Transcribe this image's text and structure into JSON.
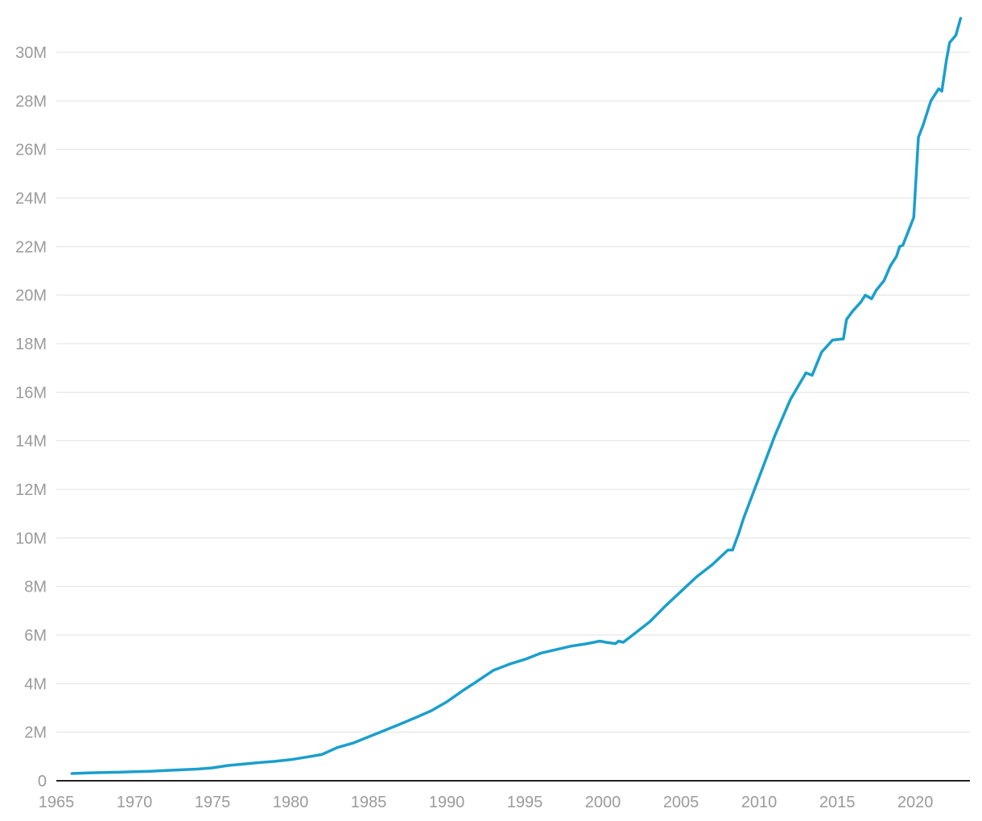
{
  "chart_data": {
    "type": "line",
    "title": "",
    "xlabel": "",
    "ylabel": "",
    "xlim": [
      1965,
      2023.5
    ],
    "ylim": [
      0,
      31500000
    ],
    "grid": true,
    "legend": "none",
    "line_color": "#1a9fcd",
    "x_ticks": [
      {
        "value": 1965,
        "label": "1965"
      },
      {
        "value": 1970,
        "label": "1970"
      },
      {
        "value": 1975,
        "label": "1975"
      },
      {
        "value": 1980,
        "label": "1980"
      },
      {
        "value": 1985,
        "label": "1985"
      },
      {
        "value": 1990,
        "label": "1990"
      },
      {
        "value": 1995,
        "label": "1995"
      },
      {
        "value": 2000,
        "label": "2000"
      },
      {
        "value": 2005,
        "label": "2005"
      },
      {
        "value": 2010,
        "label": "2010"
      },
      {
        "value": 2015,
        "label": "2015"
      },
      {
        "value": 2020,
        "label": "2020"
      }
    ],
    "y_ticks": [
      {
        "value": 0,
        "label": "0"
      },
      {
        "value": 2000000,
        "label": "2M"
      },
      {
        "value": 4000000,
        "label": "4M"
      },
      {
        "value": 6000000,
        "label": "6M"
      },
      {
        "value": 8000000,
        "label": "8M"
      },
      {
        "value": 10000000,
        "label": "10M"
      },
      {
        "value": 12000000,
        "label": "12M"
      },
      {
        "value": 14000000,
        "label": "14M"
      },
      {
        "value": 16000000,
        "label": "16M"
      },
      {
        "value": 18000000,
        "label": "18M"
      },
      {
        "value": 20000000,
        "label": "20M"
      },
      {
        "value": 22000000,
        "label": "22M"
      },
      {
        "value": 24000000,
        "label": "24M"
      },
      {
        "value": 26000000,
        "label": "26M"
      },
      {
        "value": 28000000,
        "label": "28M"
      },
      {
        "value": 30000000,
        "label": "30M"
      }
    ],
    "series": [
      {
        "x": [
          1966.0,
          1967.0,
          1968.0,
          1969.0,
          1970.0,
          1971.0,
          1972.0,
          1973.0,
          1974.0,
          1975.0,
          1976.0,
          1977.0,
          1978.0,
          1979.0,
          1980.0,
          1981.0,
          1982.0,
          1983.0,
          1984.0,
          1985.0,
          1986.0,
          1987.0,
          1988.0,
          1989.0,
          1990.0,
          1991.0,
          1992.0,
          1993.0,
          1994.0,
          1995.0,
          1996.0,
          1997.0,
          1998.0,
          1999.0,
          1999.8,
          2000.2,
          2000.8,
          2001.0,
          2001.3,
          2002.0,
          2003.0,
          2004.0,
          2005.0,
          2006.0,
          2007.0,
          2008.0,
          2008.3,
          2008.7,
          2009.0,
          2010.0,
          2011.0,
          2012.0,
          2013.0,
          2013.4,
          2014.0,
          2014.7,
          2015.4,
          2015.6,
          2016.0,
          2016.5,
          2016.8,
          2017.2,
          2017.5,
          2018.0,
          2018.4,
          2018.8,
          2019.0,
          2019.2,
          2019.6,
          2019.9,
          2020.2,
          2020.5,
          2021.0,
          2021.5,
          2021.7,
          2022.0,
          2022.2,
          2022.6,
          2022.9
        ],
        "y": [
          300000,
          320000,
          340000,
          350000,
          370000,
          390000,
          420000,
          450000,
          480000,
          530000,
          630000,
          690000,
          750000,
          800000,
          870000,
          970000,
          1080000,
          1370000,
          1550000,
          1810000,
          2070000,
          2330000,
          2600000,
          2880000,
          3250000,
          3700000,
          4120000,
          4550000,
          4800000,
          5000000,
          5250000,
          5400000,
          5550000,
          5650000,
          5750000,
          5700000,
          5650000,
          5750000,
          5700000,
          6050000,
          6550000,
          7200000,
          7800000,
          8400000,
          8900000,
          9500000,
          9500000,
          10200000,
          10800000,
          12500000,
          14200000,
          15700000,
          16800000,
          16700000,
          17650000,
          18150000,
          18200000,
          19000000,
          19350000,
          19700000,
          20000000,
          19850000,
          20200000,
          20600000,
          21200000,
          21600000,
          22000000,
          22050000,
          22700000,
          23200000,
          26500000,
          27000000,
          28000000,
          28500000,
          28400000,
          29700000,
          30400000,
          30700000,
          31400000
        ]
      }
    ]
  }
}
